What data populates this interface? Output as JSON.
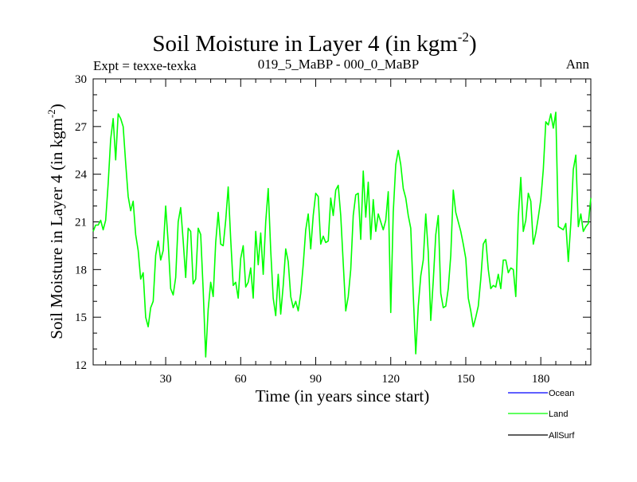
{
  "chart_data": {
    "type": "line",
    "title": "Soil Moisture in Layer 4 (in kgm",
    "title_sup": "-2",
    "title_close": ")",
    "left_label": "Expt = texxe-texka",
    "center_label": "019_5_MaBP - 000_0_MaBP",
    "right_label": "Ann",
    "xlabel": "Time (in years since start)",
    "ylabel": "Soil Moisture in Layer 4 (in kgm",
    "ylabel_sup": "-2",
    "ylabel_close": ")",
    "xlim": [
      1,
      200
    ],
    "ylim": [
      12,
      30
    ],
    "xticks": [
      30,
      60,
      90,
      120,
      150,
      180
    ],
    "yticks": [
      12,
      15,
      18,
      21,
      24,
      27,
      30
    ],
    "grid": false,
    "colors": {
      "Ocean": "#0000ff",
      "Land": "#00ff00",
      "AllSurf": "#000000"
    },
    "legend": [
      "Ocean",
      "Land",
      "AllSurf"
    ],
    "series": [
      {
        "name": "Land",
        "x": [
          1,
          2,
          3,
          4,
          5,
          6,
          7,
          8,
          9,
          10,
          11,
          12,
          13,
          14,
          15,
          16,
          17,
          18,
          19,
          20,
          21,
          22,
          23,
          24,
          25,
          26,
          27,
          28,
          29,
          30,
          31,
          32,
          33,
          34,
          35,
          36,
          37,
          38,
          39,
          40,
          41,
          42,
          43,
          44,
          45,
          46,
          47,
          48,
          49,
          50,
          51,
          52,
          53,
          54,
          55,
          56,
          57,
          58,
          59,
          60,
          61,
          62,
          63,
          64,
          65,
          66,
          67,
          68,
          69,
          70,
          71,
          72,
          73,
          74,
          75,
          76,
          77,
          78,
          79,
          80,
          81,
          82,
          83,
          84,
          85,
          86,
          87,
          88,
          89,
          90,
          91,
          92,
          93,
          94,
          95,
          96,
          97,
          98,
          99,
          100,
          101,
          102,
          103,
          104,
          105,
          106,
          107,
          108,
          109,
          110,
          111,
          112,
          113,
          114,
          115,
          116,
          117,
          118,
          119,
          120,
          121,
          122,
          123,
          124,
          125,
          126,
          127,
          128,
          129,
          130,
          131,
          132,
          133,
          134,
          135,
          136,
          137,
          138,
          139,
          140,
          141,
          142,
          143,
          144,
          145,
          146,
          147,
          148,
          149,
          150,
          151,
          152,
          153,
          154,
          155,
          156,
          157,
          158,
          159,
          160,
          161,
          162,
          163,
          164,
          165,
          166,
          167,
          168,
          169,
          170,
          171,
          172,
          173,
          174,
          175,
          176,
          177,
          178,
          179,
          180,
          181,
          182,
          183,
          184,
          185,
          186,
          187,
          188,
          189,
          190,
          191,
          192,
          193,
          194,
          195,
          196,
          197,
          198,
          199,
          200
        ],
        "values": [
          20.4,
          20.8,
          20.8,
          21.1,
          20.5,
          21.1,
          23.4,
          26.2,
          27.5,
          24.9,
          27.8,
          27.5,
          27.0,
          24.7,
          22.6,
          21.7,
          22.3,
          20.2,
          19.2,
          17.4,
          17.8,
          15.0,
          14.4,
          15.6,
          16.0,
          18.9,
          19.8,
          18.6,
          19.2,
          22.0,
          19.7,
          16.8,
          16.4,
          17.5,
          21.0,
          21.9,
          19.8,
          17.5,
          20.6,
          20.4,
          17.1,
          17.4,
          20.6,
          20.2,
          16.7,
          12.5,
          15.5,
          17.2,
          16.3,
          19.7,
          21.6,
          19.6,
          19.5,
          21.1,
          23.2,
          19.9,
          17.0,
          17.2,
          16.2,
          18.7,
          19.5,
          16.9,
          17.2,
          18.1,
          16.2,
          20.4,
          18.3,
          20.3,
          17.7,
          21.0,
          23.1,
          19.2,
          16.2,
          15.1,
          17.7,
          15.2,
          17.0,
          19.3,
          18.5,
          16.3,
          15.6,
          16.0,
          15.4,
          16.5,
          18.3,
          20.5,
          21.5,
          19.3,
          21.4,
          22.8,
          22.6,
          19.6,
          20.1,
          19.7,
          19.8,
          22.5,
          21.4,
          23.0,
          23.3,
          21.4,
          18.4,
          15.4,
          16.3,
          18.0,
          21.4,
          22.7,
          22.8,
          19.9,
          24.2,
          21.3,
          23.5,
          19.9,
          22.4,
          20.4,
          21.5,
          21.0,
          20.5,
          21.1,
          22.9,
          15.3,
          21.6,
          24.6,
          25.5,
          24.6,
          23.1,
          22.5,
          21.4,
          20.6,
          16.4,
          12.7,
          15.7,
          17.6,
          18.6,
          21.5,
          19.1,
          14.8,
          17.3,
          20.2,
          21.4,
          16.5,
          15.6,
          15.7,
          16.8,
          18.9,
          23.0,
          21.6,
          21.0,
          20.4,
          19.6,
          18.7,
          16.2,
          15.4,
          14.4,
          15.0,
          15.7,
          17.4,
          19.6,
          19.9,
          18.0,
          16.8,
          17.0,
          16.9,
          17.7,
          16.8,
          18.6,
          18.6,
          17.8,
          18.1,
          18.0,
          16.3,
          21.3,
          23.8,
          20.4,
          21.1,
          22.8,
          22.3,
          19.6,
          20.3,
          21.3,
          22.4,
          24.3,
          27.3,
          27.1,
          27.8,
          26.9,
          27.9,
          20.7,
          20.6,
          20.5,
          20.9,
          18.5,
          20.9,
          24.3,
          25.2,
          20.7,
          21.5,
          20.4,
          20.7,
          20.9,
          22.5
        ]
      }
    ]
  }
}
